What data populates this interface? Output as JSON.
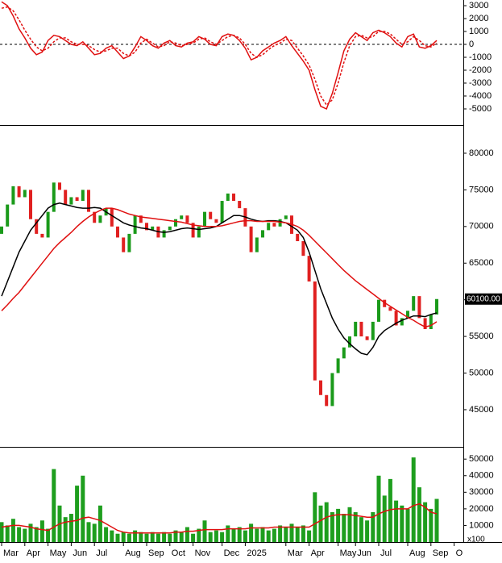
{
  "chart_data": [
    {
      "type": "line",
      "ylim": [
        -6250,
        3440
      ],
      "yticks": [
        3000,
        2000,
        1000,
        0,
        -1000,
        -2000,
        -3000,
        -4000,
        -5000
      ],
      "zero_line": true,
      "series": [
        {
          "color": "#e01010",
          "style": "solid",
          "values": [
            3300,
            3000,
            2200,
            1200,
            500,
            -300,
            -800,
            -600,
            300,
            700,
            600,
            300,
            0,
            -100,
            200,
            -300,
            -800,
            -700,
            -300,
            -100,
            -600,
            -1100,
            -900,
            -200,
            600,
            300,
            -100,
            -300,
            100,
            300,
            -100,
            -200,
            100,
            200,
            600,
            400,
            0,
            -100,
            600,
            800,
            700,
            300,
            -300,
            -1200,
            -1000,
            -500,
            -200,
            100,
            300,
            600,
            -100,
            -700,
            -1300,
            -2000,
            -3500,
            -4800,
            -5000,
            -3800,
            -2200,
            -500,
            400,
            900,
            600,
            300,
            900,
            1100,
            900,
            600,
            100,
            -200,
            600,
            800,
            -200,
            -300,
            -100,
            300,
            null,
            null,
            null
          ]
        },
        {
          "color": "#e01010",
          "style": "dashed",
          "values": [
            2800,
            2900,
            2600,
            1900,
            1100,
            400,
            -200,
            -500,
            -300,
            200,
            500,
            500,
            200,
            0,
            0,
            -100,
            -400,
            -600,
            -500,
            -300,
            -300,
            -700,
            -900,
            -600,
            100,
            400,
            100,
            -200,
            -100,
            200,
            100,
            -100,
            0,
            100,
            400,
            500,
            200,
            0,
            300,
            600,
            700,
            500,
            0,
            -700,
            -1000,
            -800,
            -400,
            -100,
            100,
            400,
            300,
            -300,
            -900,
            -1600,
            -2700,
            -4000,
            -4700,
            -4300,
            -3000,
            -1400,
            -100,
            600,
            700,
            500,
            600,
            1000,
            1000,
            800,
            400,
            0,
            200,
            600,
            300,
            -100,
            -200,
            100,
            null,
            null,
            null
          ]
        }
      ]
    },
    {
      "type": "candlestick",
      "ylim": [
        40040,
        83630
      ],
      "yticks": [
        45000,
        50000,
        55000,
        60000,
        65000,
        70000,
        75000,
        80000
      ],
      "up_color": "#1a9a1a",
      "down_color": "#e02020",
      "last_label": "60100.00",
      "open": [
        69000,
        70000,
        73000,
        75500,
        74000,
        75000,
        71000,
        69000,
        68500,
        72000,
        76000,
        75000,
        73000,
        74000,
        73500,
        75000,
        72000,
        70500,
        71500,
        72500,
        70000,
        68500,
        66500,
        69000,
        71500,
        70500,
        69500,
        70000,
        68500,
        69500,
        70000,
        71000,
        71500,
        70500,
        68500,
        70000,
        72000,
        71000,
        70500,
        73500,
        74500,
        73500,
        72500,
        70000,
        66500,
        68500,
        69500,
        70500,
        70000,
        71000,
        71500,
        69000,
        68000,
        66000,
        62500,
        49000,
        47000,
        45500,
        50000,
        52000,
        53500,
        55000,
        57000,
        55000,
        54500,
        57000,
        60000,
        59000,
        58500,
        56500,
        57500,
        58500,
        60500,
        57500,
        56000,
        58000,
        null,
        null,
        null
      ],
      "close": [
        70000,
        73000,
        75500,
        74000,
        75000,
        71000,
        69000,
        68500,
        72000,
        76000,
        75000,
        73000,
        74000,
        73500,
        75000,
        72000,
        70500,
        71500,
        72500,
        70000,
        68500,
        66500,
        69000,
        71500,
        70500,
        69500,
        70000,
        68500,
        69500,
        70000,
        71000,
        71500,
        70500,
        68500,
        70000,
        72000,
        71000,
        70500,
        73500,
        74500,
        73500,
        72500,
        70000,
        66500,
        68500,
        69500,
        70500,
        70000,
        71000,
        71500,
        69000,
        68000,
        66000,
        62500,
        49000,
        47000,
        45500,
        50000,
        52000,
        53500,
        55000,
        57000,
        55000,
        54500,
        57000,
        60000,
        59000,
        58500,
        56500,
        57500,
        58500,
        60500,
        57500,
        56000,
        58000,
        60100,
        null,
        null,
        null
      ],
      "series": [
        {
          "color": "#000000",
          "values": [
            60500,
            62500,
            64500,
            66500,
            68000,
            69500,
            70500,
            71500,
            72500,
            73000,
            73200,
            73000,
            72800,
            72600,
            72500,
            72500,
            72600,
            72500,
            72000,
            71500,
            71000,
            70500,
            70200,
            70000,
            69800,
            69700,
            69500,
            69300,
            69200,
            69300,
            69500,
            69700,
            69800,
            69700,
            69600,
            69700,
            69800,
            70000,
            70500,
            71000,
            71500,
            71500,
            71300,
            71000,
            70800,
            70700,
            70800,
            70800,
            70700,
            70500,
            70000,
            69500,
            68500,
            66500,
            64000,
            61500,
            59500,
            57500,
            56000,
            54800,
            54000,
            53300,
            52700,
            52500,
            53500,
            55000,
            55800,
            56300,
            56800,
            57200,
            57500,
            57800,
            57800,
            57700,
            58000,
            58200,
            null,
            null,
            null
          ]
        },
        {
          "color": "#e01010",
          "values": [
            58500,
            59300,
            60200,
            61000,
            62000,
            63000,
            64000,
            65000,
            66000,
            67000,
            67800,
            68500,
            69200,
            70000,
            70700,
            71300,
            71800,
            72200,
            72500,
            72500,
            72300,
            72000,
            71700,
            71500,
            71300,
            71200,
            71100,
            71000,
            70900,
            70800,
            70700,
            70600,
            70400,
            70200,
            70100,
            70000,
            70000,
            70000,
            70100,
            70300,
            70500,
            70700,
            70800,
            70800,
            70700,
            70700,
            70700,
            70700,
            70600,
            70500,
            70300,
            70000,
            69500,
            68800,
            68000,
            67200,
            66400,
            65600,
            64800,
            64000,
            63300,
            62600,
            62000,
            61400,
            60800,
            60200,
            59600,
            59100,
            58600,
            58100,
            57600,
            57200,
            56700,
            56300,
            56500,
            57000,
            null,
            null,
            null
          ]
        }
      ]
    },
    {
      "type": "bar",
      "ylim": [
        0,
        56900
      ],
      "yticks": [
        10000,
        20000,
        30000,
        40000,
        50000
      ],
      "unit_label": "x100",
      "color": "#1e9e1e",
      "categories": [
        "Mar",
        null,
        null,
        null,
        "Apr",
        null,
        null,
        null,
        "May",
        null,
        null,
        null,
        "Jun",
        null,
        null,
        null,
        "Jul",
        null,
        null,
        null,
        null,
        "Aug",
        null,
        null,
        null,
        "Sep",
        null,
        null,
        null,
        "Oct",
        null,
        null,
        null,
        "Nov",
        null,
        null,
        null,
        null,
        "Dec",
        null,
        null,
        null,
        "2025",
        null,
        null,
        null,
        null,
        null,
        null,
        "Mar",
        null,
        null,
        null,
        "Apr",
        null,
        null,
        null,
        null,
        "May",
        null,
        null,
        "Jun",
        null,
        null,
        null,
        "Jul",
        null,
        null,
        null,
        null,
        "Aug",
        null,
        null,
        null,
        "Sep",
        null,
        null,
        null,
        "O"
      ],
      "values": [
        12000,
        10000,
        14000,
        9000,
        8000,
        11000,
        9000,
        13000,
        8000,
        44000,
        22000,
        15000,
        17000,
        34000,
        40000,
        12000,
        11000,
        22000,
        9000,
        7000,
        5000,
        6000,
        5000,
        7000,
        6000,
        5000,
        6000,
        5000,
        6000,
        5000,
        7000,
        6000,
        9000,
        5000,
        8000,
        13000,
        6000,
        7000,
        6000,
        10000,
        8000,
        9000,
        7000,
        11000,
        8000,
        9000,
        7000,
        8000,
        10000,
        9000,
        11000,
        9000,
        10000,
        7000,
        30000,
        22000,
        24000,
        18000,
        20000,
        17000,
        21000,
        18000,
        15000,
        13000,
        18000,
        40000,
        28000,
        38000,
        25000,
        22000,
        20000,
        51000,
        33000,
        24000,
        20000,
        26000,
        null,
        null,
        null
      ],
      "series": [
        {
          "color": "#e01010",
          "values": [
            9000,
            9500,
            10000,
            10000,
            9500,
            9000,
            8000,
            7500,
            7000,
            9000,
            11000,
            12000,
            12500,
            13000,
            14500,
            15000,
            14000,
            13000,
            11000,
            9000,
            7000,
            6000,
            5500,
            5500,
            5500,
            5500,
            5500,
            5500,
            5500,
            5500,
            6000,
            6000,
            6500,
            6500,
            7000,
            7500,
            7500,
            7500,
            7500,
            8000,
            8000,
            8000,
            8000,
            8500,
            8500,
            8500,
            8500,
            9000,
            9000,
            9000,
            9000,
            9000,
            9000,
            9000,
            11000,
            13000,
            15000,
            16000,
            16500,
            16500,
            16500,
            16000,
            15500,
            15000,
            15000,
            17000,
            18500,
            19500,
            20000,
            20000,
            20000,
            22000,
            23000,
            21000,
            18000,
            17000,
            null,
            null,
            null
          ]
        }
      ]
    }
  ]
}
